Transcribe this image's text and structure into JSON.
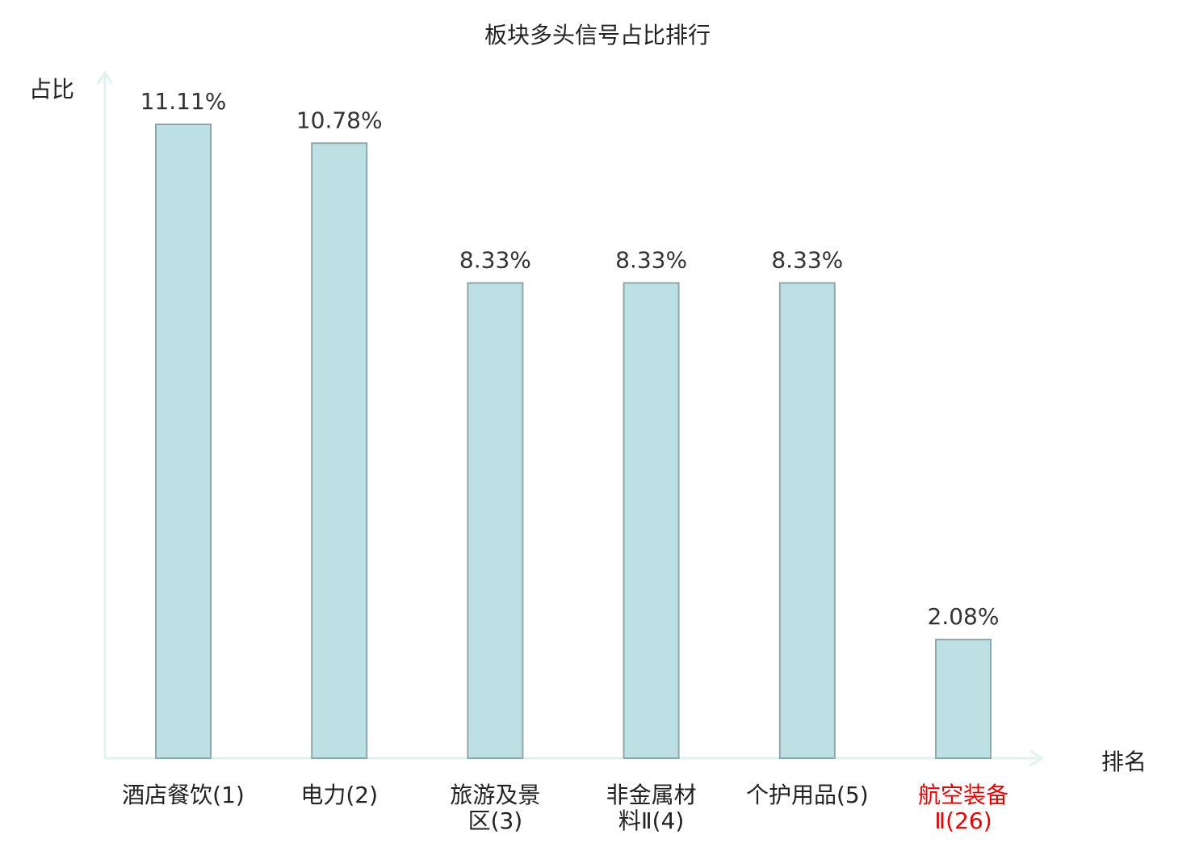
{
  "chart_data": {
    "type": "bar",
    "title": "板块多头信号占比排行",
    "xlabel": "排名",
    "ylabel": "占比",
    "categories": [
      [
        "酒店餐饮(1)"
      ],
      [
        "电力(2)"
      ],
      [
        "旅游及景",
        "区(3)"
      ],
      [
        "非金属材",
        "料Ⅱ(4)"
      ],
      [
        "个护用品(5)"
      ],
      [
        "航空装备",
        "Ⅱ(26)"
      ]
    ],
    "values": [
      11.11,
      10.78,
      8.33,
      8.33,
      8.33,
      2.08
    ],
    "value_labels": [
      "11.11%",
      "10.78%",
      "8.33%",
      "8.33%",
      "8.33%",
      "2.08%"
    ],
    "highlight_index": 5,
    "ylim": [
      0,
      11.11
    ],
    "grid": false,
    "colors": {
      "bar_fill": "#bce0e3",
      "bar_stroke": "#8fa7aa",
      "axis": "#e0f2ef",
      "text": "#333333",
      "title": "#222222",
      "highlight": "#e60000"
    }
  }
}
